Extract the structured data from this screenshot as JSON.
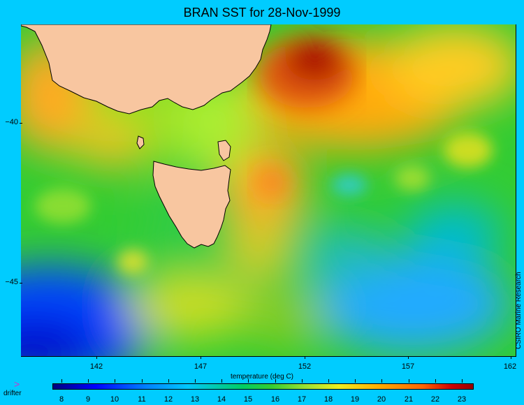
{
  "title": "BRAN SST for 28-Nov-1999",
  "credit": "CSIRO Marine Research",
  "axis": {
    "x_title": "temperature (deg C)",
    "lon_ticks": [
      "142",
      "147",
      "152",
      "157",
      "162"
    ],
    "lat_ticks": [
      "−40",
      "−45"
    ]
  },
  "colorbar": {
    "labels": [
      "8",
      "9",
      "10",
      "11",
      "12",
      "13",
      "14",
      "15",
      "16",
      "17",
      "18",
      "19",
      "20",
      "21",
      "22",
      "23"
    ],
    "min_c": 8,
    "max_c": 23
  },
  "legend": {
    "drifter_symbol": ">",
    "drifter_label": "drifter",
    "drifter_color": "#cc33cc"
  },
  "colors": {
    "background": "#00ccff",
    "land": "#f8c6a0",
    "coast": "#000000"
  }
}
